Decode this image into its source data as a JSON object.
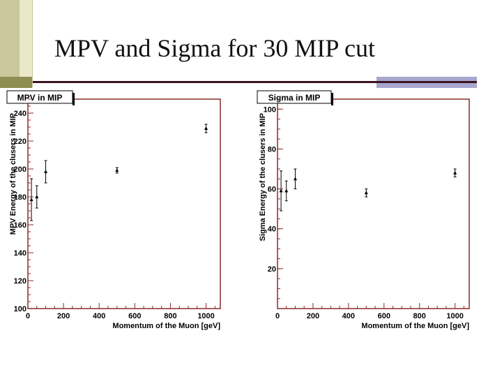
{
  "slide": {
    "title": "MPV and Sigma for 30 MIP cut"
  },
  "colors": {
    "frame": "#8b2a2a",
    "marker": "#000000",
    "title_bar_left": "#c9c89a",
    "rule": "#3a1420",
    "accent": "#a7a6cf"
  },
  "chart_data": [
    {
      "type": "scatter",
      "title": "MPV in MIP",
      "xlabel": "Momentum of the Muon [geV]",
      "ylabel": "MPV Energy  of the clusers in MIP",
      "xlim": [
        0,
        1080
      ],
      "ylim": [
        100,
        250
      ],
      "xticks": [
        0,
        200,
        400,
        600,
        800,
        1000
      ],
      "yticks": [
        100,
        120,
        140,
        160,
        180,
        200,
        220,
        240
      ],
      "series": [
        {
          "points": [
            {
              "x": 20,
              "y": 178,
              "err": 15
            },
            {
              "x": 50,
              "y": 180,
              "err": 8
            },
            {
              "x": 100,
              "y": 198,
              "err": 8
            },
            {
              "x": 500,
              "y": 199,
              "err": 2
            },
            {
              "x": 1000,
              "y": 229,
              "err": 3
            }
          ]
        }
      ],
      "grid": false
    },
    {
      "type": "scatter",
      "title": "Sigma in MIP",
      "xlabel": "Momentum of the Muon [geV]",
      "ylabel": "Sigma Energy  of the clusers in MIP",
      "xlim": [
        0,
        1080
      ],
      "ylim": [
        0,
        105
      ],
      "xticks": [
        0,
        200,
        400,
        600,
        800,
        1000
      ],
      "yticks": [
        20,
        40,
        60,
        80,
        100
      ],
      "series": [
        {
          "points": [
            {
              "x": 20,
              "y": 59,
              "err": 10
            },
            {
              "x": 50,
              "y": 59,
              "err": 5
            },
            {
              "x": 100,
              "y": 65,
              "err": 5
            },
            {
              "x": 500,
              "y": 58,
              "err": 2
            },
            {
              "x": 1000,
              "y": 68,
              "err": 2
            }
          ]
        }
      ],
      "grid": false
    }
  ]
}
